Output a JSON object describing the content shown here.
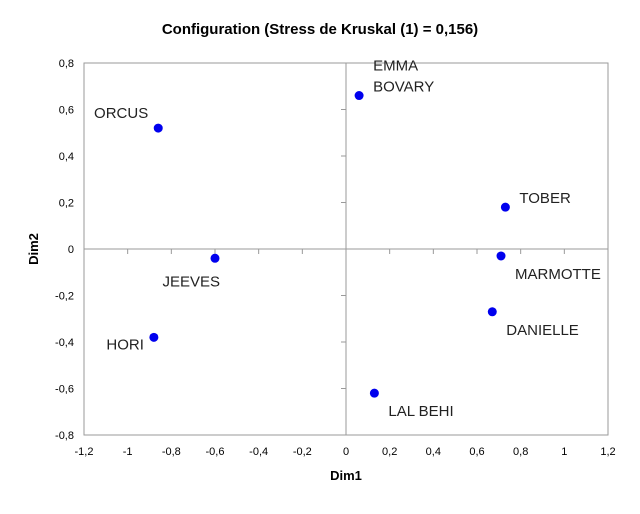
{
  "chart_data": {
    "type": "scatter",
    "title": "Configuration (Stress de Kruskal (1) = 0,156)",
    "xlabel": "Dim1",
    "ylabel": "Dim2",
    "xlim": [
      -1.2,
      1.2
    ],
    "ylim": [
      -0.8,
      0.8
    ],
    "x_ticks": [
      -1.2,
      -1,
      -0.8,
      -0.6,
      -0.4,
      -0.2,
      0,
      0.2,
      0.4,
      0.6,
      0.8,
      1,
      1.2
    ],
    "y_ticks": [
      -0.8,
      -0.6,
      -0.4,
      -0.2,
      0,
      0.2,
      0.4,
      0.6,
      0.8
    ],
    "x_tick_labels": [
      "-1,2",
      "-1",
      "-0,8",
      "-0,6",
      "-0,4",
      "-0,2",
      "0",
      "0,2",
      "0,4",
      "0,6",
      "0,8",
      "1",
      "1,2"
    ],
    "y_tick_labels": [
      "-0,8",
      "-0,6",
      "-0,4",
      "-0,2",
      "0",
      "0,2",
      "0,4",
      "0,6",
      "0,8"
    ],
    "grid": false,
    "point_color": "#0000ee",
    "points": [
      {
        "label_lines": [
          "EMMA",
          "BOVARY"
        ],
        "x": 0.06,
        "y": 0.66,
        "label_pos": "above-right"
      },
      {
        "label_lines": [
          "ORCUS"
        ],
        "x": -0.86,
        "y": 0.52,
        "label_pos": "above-left"
      },
      {
        "label_lines": [
          "TOBER"
        ],
        "x": 0.73,
        "y": 0.18,
        "label_pos": "above-right"
      },
      {
        "label_lines": [
          "MARMOTTE"
        ],
        "x": 0.71,
        "y": -0.03,
        "label_pos": "below-right"
      },
      {
        "label_lines": [
          "JEEVES"
        ],
        "x": -0.6,
        "y": -0.04,
        "label_pos": "below-left"
      },
      {
        "label_lines": [
          "DANIELLE"
        ],
        "x": 0.67,
        "y": -0.27,
        "label_pos": "below-right"
      },
      {
        "label_lines": [
          "HORI"
        ],
        "x": -0.88,
        "y": -0.38,
        "label_pos": "left"
      },
      {
        "label_lines": [
          "LAL BEHI"
        ],
        "x": 0.13,
        "y": -0.62,
        "label_pos": "below-right"
      }
    ]
  }
}
